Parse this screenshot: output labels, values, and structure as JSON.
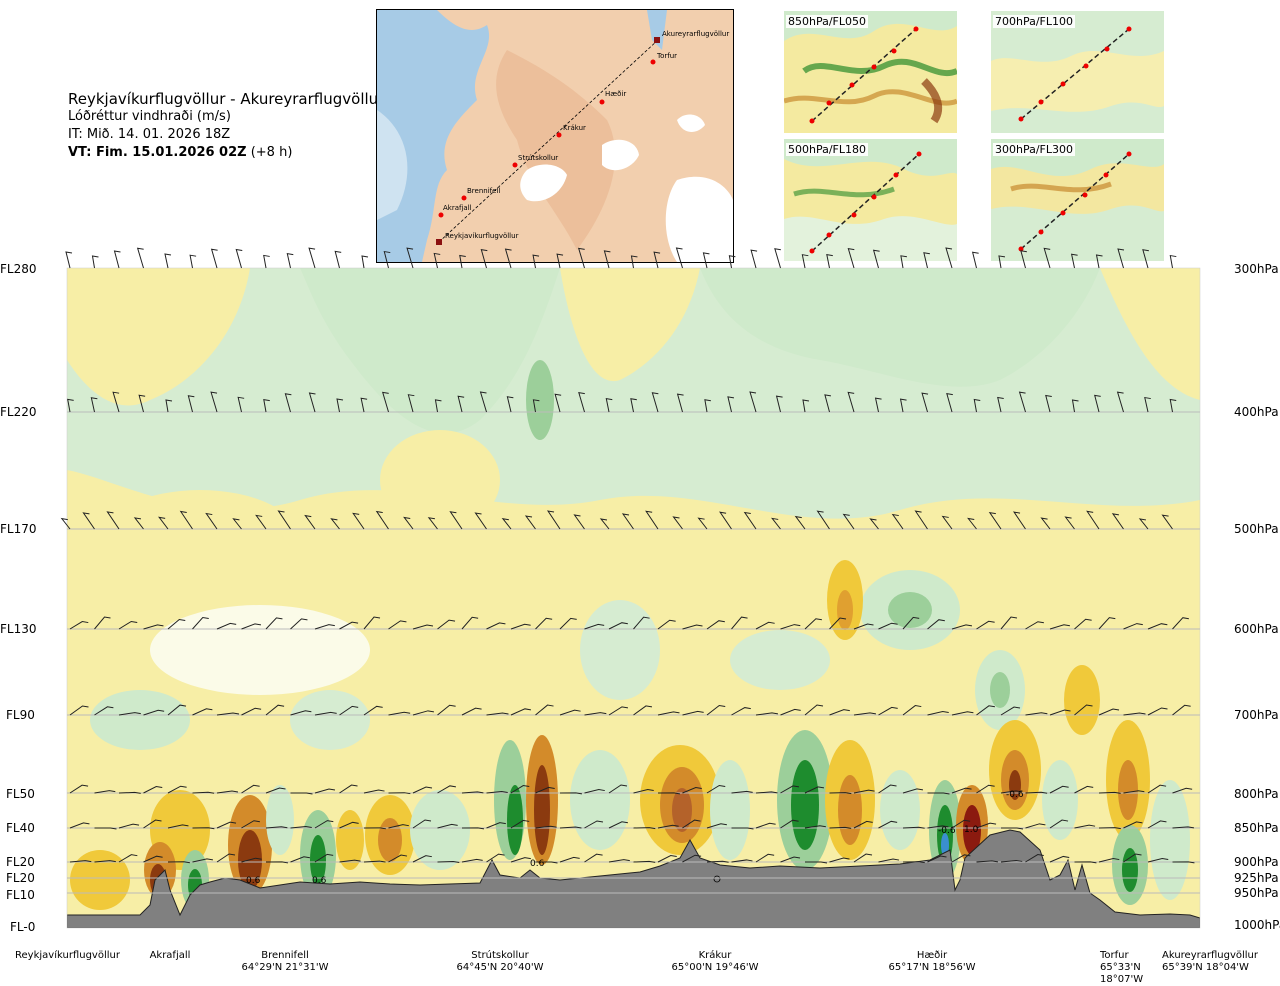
{
  "title": {
    "route": "Reykjavíkurflugvöllur - Akureyrarflugvöllur",
    "subtitle": "Lóðréttur vindhraði (m/s)",
    "init_time": "IT: Mið. 14. 01. 2026 18Z",
    "valid_prefix": "VT: Fim. 15.01.2026 02Z",
    "valid_suffix": "(+8 h)"
  },
  "route_map": {
    "waypoints": [
      "Akureyrarflugvöllur",
      "Torfur",
      "Hæðir",
      "Krákur",
      "Strútskollur",
      "Brennifell",
      "Akrafjall",
      "Reykjavíkurflugvöllur"
    ]
  },
  "level_maps": [
    {
      "label": "850hPa/FL050"
    },
    {
      "label": "700hPa/FL100"
    },
    {
      "label": "500hPa/FL180"
    },
    {
      "label": "300hPa/FL300"
    }
  ],
  "chart_data": {
    "type": "heatmap",
    "title": "Lóðréttur vindhraði (m/s)",
    "left_axis_labels": [
      "FL280",
      "FL220",
      "FL170",
      "FL130",
      "FL90",
      "FL50",
      "FL40",
      "FL20",
      "FL20",
      "FL10",
      "FL-0"
    ],
    "right_axis_labels": [
      "300hPa",
      "400hPa",
      "500hPa",
      "600hPa",
      "700hPa",
      "800hPa",
      "850hPa",
      "900hPa",
      "925hPa",
      "950hPa",
      "1000hPa"
    ],
    "pressure_levels_hpa": [
      300,
      400,
      500,
      600,
      700,
      800,
      850,
      900,
      925,
      950,
      1000
    ],
    "locations": [
      {
        "name": "Reykjavíkurflugvöllur",
        "coord": ""
      },
      {
        "name": "Akrafjall",
        "coord": ""
      },
      {
        "name": "Brennifell",
        "coord": "64°29'N 21°31'W"
      },
      {
        "name": "Strútskollur",
        "coord": "64°45'N 20°40'W"
      },
      {
        "name": "Krákur",
        "coord": "65°00'N 19°46'W"
      },
      {
        "name": "Hæðir",
        "coord": "65°17'N 18°56'W"
      },
      {
        "name": "Torfur",
        "coord": "65°33'N 18°07'W"
      },
      {
        "name": "Akureyrarflugvöllur",
        "coord": "65°39'N 18°04'W"
      }
    ],
    "annotations": [
      "0.6",
      "0.6",
      "0.6",
      "-0.6",
      "-0.7",
      "1.0",
      "-0.6"
    ],
    "colors": {
      "strong_down": "#8b3a0f",
      "down": "#d38b2a",
      "weak_down": "#f0c93a",
      "slight_down": "#f7eea6",
      "neutral": "#fbfbe8",
      "slight_up": "#e9f6e1",
      "weak_up": "#cfeacb",
      "up": "#9ccf9a",
      "strong_up": "#1e8c2e",
      "terrain": "#808080"
    }
  }
}
